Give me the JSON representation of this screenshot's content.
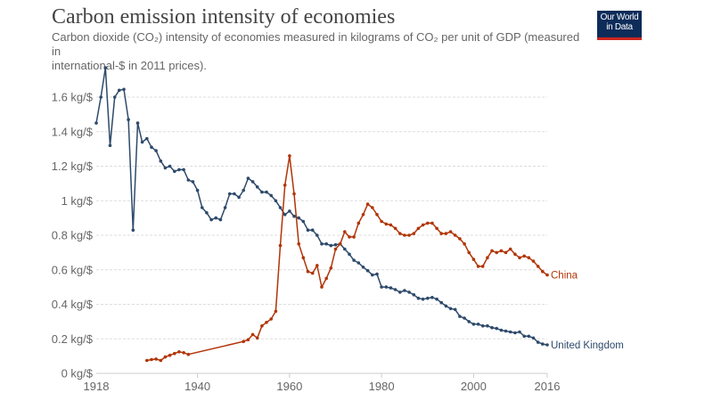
{
  "header": {
    "title": "Carbon emission intensity of economies",
    "subtitle_line1": "Carbon dioxide (CO₂) intensity of economies measured in kilograms of CO₂ per unit of GDP (measured in",
    "subtitle_line2": "international-$ in 2011 prices).",
    "logo_line1": "Our World",
    "logo_line2": "in Data"
  },
  "chart_data": {
    "type": "line",
    "title": "Carbon emission intensity of economies",
    "xlabel": "",
    "ylabel": "",
    "xlim": [
      1918,
      2016
    ],
    "ylim": [
      0,
      1.8
    ],
    "grid": true,
    "legend": "inline-right",
    "y_ticks": [
      {
        "value": 0,
        "label": "0 kg/$"
      },
      {
        "value": 0.2,
        "label": "0.2 kg/$"
      },
      {
        "value": 0.4,
        "label": "0.4 kg/$"
      },
      {
        "value": 0.6,
        "label": "0.6 kg/$"
      },
      {
        "value": 0.8,
        "label": "0.8 kg/$"
      },
      {
        "value": 1.0,
        "label": "1 kg/$"
      },
      {
        "value": 1.2,
        "label": "1.2 kg/$"
      },
      {
        "value": 1.4,
        "label": "1.4 kg/$"
      },
      {
        "value": 1.6,
        "label": "1.6 kg/$"
      }
    ],
    "x_ticks": [
      {
        "value": 1918,
        "label": "1918"
      },
      {
        "value": 1940,
        "label": "1940"
      },
      {
        "value": 1960,
        "label": "1960"
      },
      {
        "value": 1980,
        "label": "1980"
      },
      {
        "value": 2000,
        "label": "2000"
      },
      {
        "value": 2016,
        "label": "2016"
      }
    ],
    "series": [
      {
        "name": "United Kingdom",
        "color": "#2e4a6b",
        "x": [
          1918,
          1919,
          1920,
          1921,
          1922,
          1923,
          1924,
          1925,
          1926,
          1927,
          1928,
          1929,
          1930,
          1931,
          1932,
          1933,
          1934,
          1935,
          1936,
          1937,
          1938,
          1939,
          1940,
          1941,
          1942,
          1943,
          1944,
          1945,
          1946,
          1947,
          1948,
          1949,
          1950,
          1951,
          1952,
          1953,
          1954,
          1955,
          1956,
          1957,
          1958,
          1959,
          1960,
          1961,
          1962,
          1963,
          1964,
          1965,
          1966,
          1967,
          1968,
          1969,
          1970,
          1971,
          1972,
          1973,
          1974,
          1975,
          1976,
          1977,
          1978,
          1979,
          1980,
          1981,
          1982,
          1983,
          1984,
          1985,
          1986,
          1987,
          1988,
          1989,
          1990,
          1991,
          1992,
          1993,
          1994,
          1995,
          1996,
          1997,
          1998,
          1999,
          2000,
          2001,
          2002,
          2003,
          2004,
          2005,
          2006,
          2007,
          2008,
          2009,
          2010,
          2011,
          2012,
          2013,
          2014,
          2015,
          2016
        ],
        "values": [
          1.45,
          1.6,
          1.77,
          1.32,
          1.6,
          1.64,
          1.645,
          1.47,
          0.83,
          1.45,
          1.34,
          1.36,
          1.31,
          1.29,
          1.23,
          1.19,
          1.2,
          1.17,
          1.18,
          1.18,
          1.12,
          1.11,
          1.06,
          0.96,
          0.93,
          0.89,
          0.9,
          0.89,
          0.96,
          1.04,
          1.04,
          1.02,
          1.06,
          1.13,
          1.11,
          1.08,
          1.05,
          1.05,
          1.03,
          1.0,
          0.96,
          0.92,
          0.94,
          0.91,
          0.9,
          0.88,
          0.83,
          0.83,
          0.8,
          0.75,
          0.75,
          0.74,
          0.745,
          0.75,
          0.72,
          0.69,
          0.655,
          0.64,
          0.615,
          0.595,
          0.57,
          0.575,
          0.5,
          0.5,
          0.495,
          0.485,
          0.47,
          0.48,
          0.47,
          0.455,
          0.435,
          0.43,
          0.435,
          0.44,
          0.43,
          0.41,
          0.39,
          0.375,
          0.37,
          0.33,
          0.32,
          0.3,
          0.285,
          0.285,
          0.275,
          0.275,
          0.265,
          0.26,
          0.25,
          0.245,
          0.24,
          0.235,
          0.24,
          0.215,
          0.215,
          0.205,
          0.18,
          0.17,
          0.165
        ]
      },
      {
        "name": "China",
        "color": "#b13507",
        "x": [
          1929,
          1930,
          1931,
          1932,
          1933,
          1934,
          1935,
          1936,
          1937,
          1938,
          1950,
          1951,
          1952,
          1953,
          1954,
          1955,
          1956,
          1957,
          1958,
          1959,
          1960,
          1961,
          1962,
          1963,
          1964,
          1965,
          1966,
          1967,
          1968,
          1969,
          1970,
          1971,
          1972,
          1973,
          1974,
          1975,
          1976,
          1977,
          1978,
          1979,
          1980,
          1981,
          1982,
          1983,
          1984,
          1985,
          1986,
          1987,
          1988,
          1989,
          1990,
          1991,
          1992,
          1993,
          1994,
          1995,
          1996,
          1997,
          1998,
          1999,
          2000,
          2001,
          2002,
          2003,
          2004,
          2005,
          2006,
          2007,
          2008,
          2009,
          2010,
          2011,
          2012,
          2013,
          2014,
          2015,
          2016
        ],
        "values": [
          0.075,
          0.08,
          0.083,
          0.075,
          0.095,
          0.105,
          0.115,
          0.125,
          0.12,
          0.11,
          0.185,
          0.195,
          0.225,
          0.205,
          0.275,
          0.295,
          0.315,
          0.36,
          0.74,
          1.09,
          1.26,
          1.04,
          0.75,
          0.67,
          0.59,
          0.58,
          0.625,
          0.5,
          0.55,
          0.61,
          0.72,
          0.75,
          0.82,
          0.79,
          0.79,
          0.87,
          0.92,
          0.98,
          0.96,
          0.92,
          0.88,
          0.865,
          0.86,
          0.84,
          0.81,
          0.8,
          0.8,
          0.81,
          0.84,
          0.86,
          0.87,
          0.87,
          0.84,
          0.81,
          0.81,
          0.82,
          0.8,
          0.78,
          0.75,
          0.7,
          0.66,
          0.62,
          0.62,
          0.67,
          0.71,
          0.7,
          0.71,
          0.7,
          0.72,
          0.69,
          0.67,
          0.68,
          0.67,
          0.65,
          0.62,
          0.59,
          0.57
        ]
      }
    ]
  }
}
